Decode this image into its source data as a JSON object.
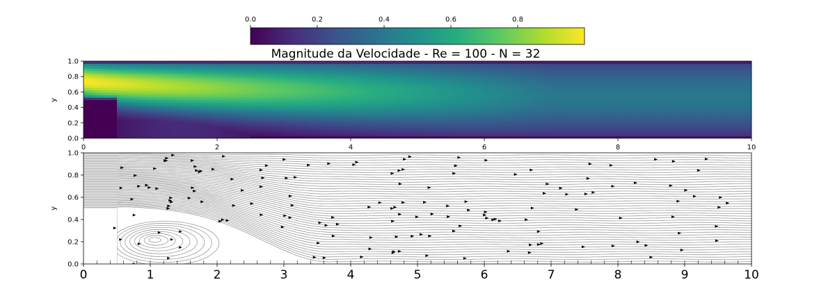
{
  "chart_data": [
    {
      "type": "heatmap",
      "title": "Magnitude da Velocidade - Re = 100 - N = 32",
      "xlabel": "",
      "ylabel": "y",
      "xlim": [
        0,
        10
      ],
      "ylim": [
        0,
        1
      ],
      "xticks": [
        "0",
        "2",
        "4",
        "6",
        "8",
        "10"
      ],
      "yticks": [
        "0.0",
        "0.2",
        "0.4",
        "0.6",
        "0.8",
        "1.0"
      ],
      "colormap": "viridis",
      "colorbar": {
        "range": [
          0,
          1
        ],
        "ticks": [
          "0.0",
          "0.2",
          "0.4",
          "0.6",
          "0.8"
        ],
        "placement": "top"
      },
      "step": {
        "x": 0.5,
        "y": 0.5
      },
      "inlet_jet": {
        "y_center": 0.75,
        "peak": 1.0
      },
      "outlet_centerline_value": 0.4
    },
    {
      "type": "streamplot",
      "title": "",
      "xlabel": "",
      "ylabel": "y",
      "xlim": [
        0,
        10
      ],
      "ylim": [
        0,
        1
      ],
      "xticks": [
        "0",
        "1",
        "2",
        "3",
        "4",
        "5",
        "6",
        "7",
        "8",
        "9",
        "10"
      ],
      "yticks": [
        "0.0",
        "0.2",
        "0.4",
        "0.6",
        "0.8",
        "1.0"
      ],
      "line_color": "#9a9a9a",
      "arrow_color": "#000000",
      "recirculation_vortex": {
        "x": 1.05,
        "y": 0.22
      },
      "step": {
        "x": 0.5,
        "y": 0.5
      }
    }
  ]
}
